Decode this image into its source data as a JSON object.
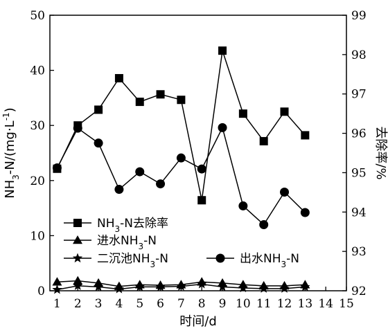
{
  "chart_data": {
    "type": "line",
    "title": "",
    "x_label_parts": [
      "时间",
      "/d"
    ],
    "y_left_label_parts": [
      "NH",
      "3",
      "-N/(mg·L",
      "-1",
      ")"
    ],
    "y_right_label": "去除率/%",
    "x_ticks": [
      "1",
      "2",
      "3",
      "4",
      "5",
      "6",
      "7",
      "8",
      "9",
      "10",
      "11",
      "12",
      "13",
      "14",
      "15"
    ],
    "y_left_ticks": [
      "0",
      "10",
      "20",
      "30",
      "40",
      "50"
    ],
    "y_right_ticks": [
      "92",
      "93",
      "94",
      "95",
      "96",
      "97",
      "98",
      "99"
    ],
    "xlim": [
      0.65,
      15
    ],
    "ylim_left": [
      0,
      50
    ],
    "ylim_right": [
      92,
      99
    ],
    "x": [
      1,
      2,
      3,
      4,
      5,
      6,
      7,
      8,
      9,
      10,
      11,
      12,
      13
    ],
    "series": [
      {
        "name_parts": [
          "NH",
          "3",
          "-N去除率"
        ],
        "axis": "right",
        "marker": "square",
        "values": [
          95.1,
          96.2,
          96.6,
          97.4,
          96.8,
          96.99,
          96.85,
          94.3,
          98.1,
          96.5,
          95.8,
          96.55,
          95.95
        ]
      },
      {
        "name_parts": [
          "进水NH",
          "3",
          "-N"
        ],
        "axis": "left",
        "marker": "triangle",
        "values": [
          1.6,
          1.8,
          1.4,
          0.8,
          1.1,
          1.0,
          1.1,
          1.6,
          1.4,
          1.1,
          0.9,
          0.9,
          1.1
        ]
      },
      {
        "name_parts": [
          "二沉池NH",
          "3",
          "-N"
        ],
        "axis": "left",
        "marker": "star",
        "values": [
          0.2,
          0.9,
          0.7,
          0.3,
          0.7,
          0.7,
          0.8,
          1.2,
          0.7,
          0.5,
          0.4,
          0.4,
          0.7
        ]
      },
      {
        "name_parts": [
          "出水NH",
          "3",
          "-N"
        ],
        "axis": "left",
        "marker": "circle",
        "values": [
          22.3,
          29.5,
          26.8,
          18.4,
          21.6,
          19.4,
          24.1,
          22.1,
          29.6,
          15.4,
          12.0,
          17.9,
          14.2
        ]
      }
    ],
    "legend_placement": "bottom-left",
    "grid": false
  }
}
